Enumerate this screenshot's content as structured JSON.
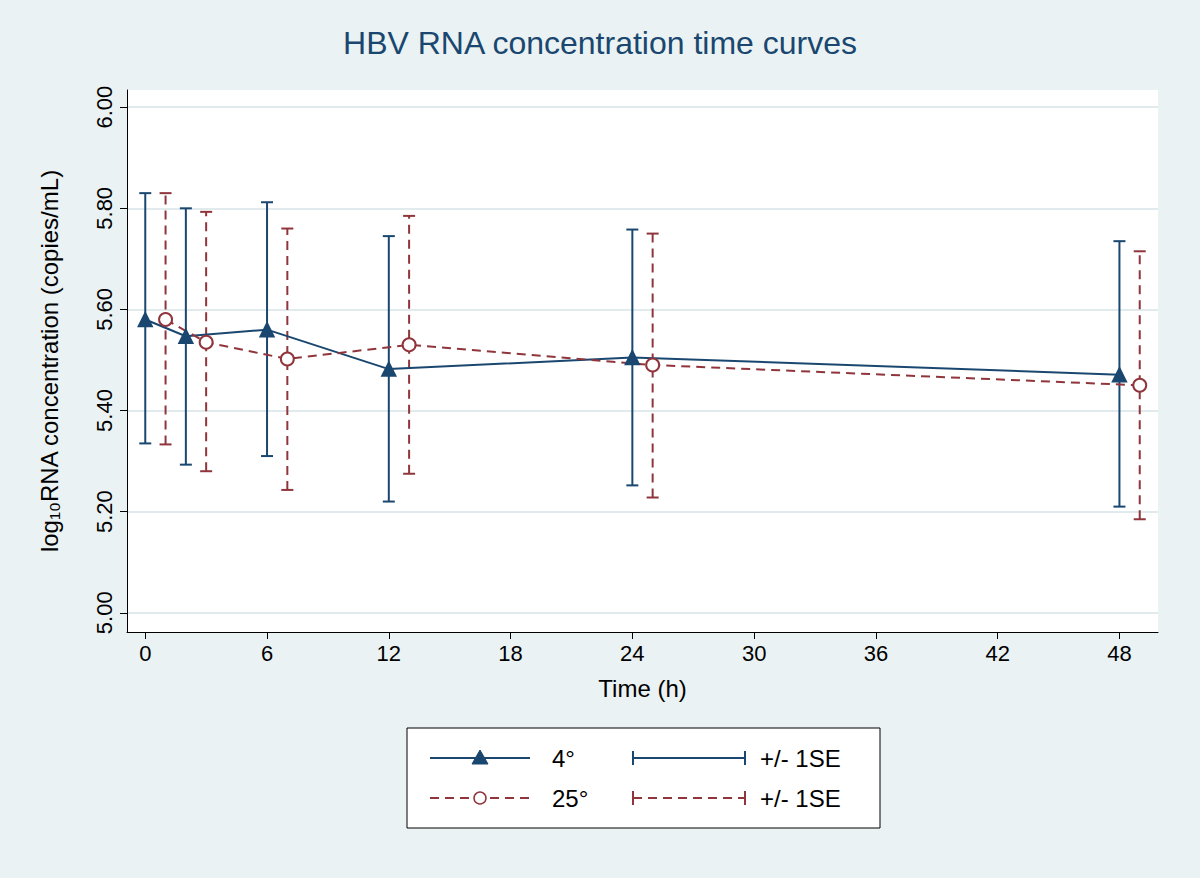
{
  "chart_data": {
    "type": "line",
    "title": "HBV RNA concentration time curves",
    "x_label": "Time (h)",
    "y_label": "log₁₀RNA concentration (copies/mL)",
    "xlim": [
      -0.9,
      49.9
    ],
    "xticks": [
      0,
      6,
      12,
      18,
      24,
      30,
      36,
      42,
      48
    ],
    "ylim": [
      4.962,
      6.034
    ],
    "yticks": [
      {
        "value": 5.0,
        "label": "5.00"
      },
      {
        "value": 5.2,
        "label": "5.20"
      },
      {
        "value": 5.4,
        "label": "5.40"
      },
      {
        "value": 5.6,
        "label": "5.60"
      },
      {
        "value": 5.8,
        "label": "5.80"
      },
      {
        "value": 6.0,
        "label": "6.00"
      }
    ],
    "grid": true,
    "legend": "bottom",
    "series": [
      {
        "name": "4°",
        "color": "#1a476f",
        "marker": "triangle",
        "line_style": "solid",
        "error_label": "+/- 1SE",
        "x": [
          0,
          2,
          6,
          12,
          24,
          48
        ],
        "values": [
          5.58,
          5.547,
          5.56,
          5.482,
          5.505,
          5.471
        ],
        "error_low": [
          5.335,
          5.293,
          5.31,
          5.22,
          5.252,
          5.21
        ],
        "error_high": [
          5.83,
          5.8,
          5.812,
          5.745,
          5.758,
          5.735
        ]
      },
      {
        "name": "25°",
        "color": "#90353b",
        "marker": "circle",
        "line_style": "dashed",
        "error_label": "+/- 1SE",
        "x": [
          1,
          3,
          7,
          13,
          25,
          49
        ],
        "values": [
          5.58,
          5.535,
          5.502,
          5.53,
          5.49,
          5.45
        ],
        "error_low": [
          5.333,
          5.28,
          5.243,
          5.275,
          5.228,
          5.185
        ],
        "error_high": [
          5.83,
          5.793,
          5.76,
          5.785,
          5.75,
          5.715
        ]
      }
    ]
  }
}
